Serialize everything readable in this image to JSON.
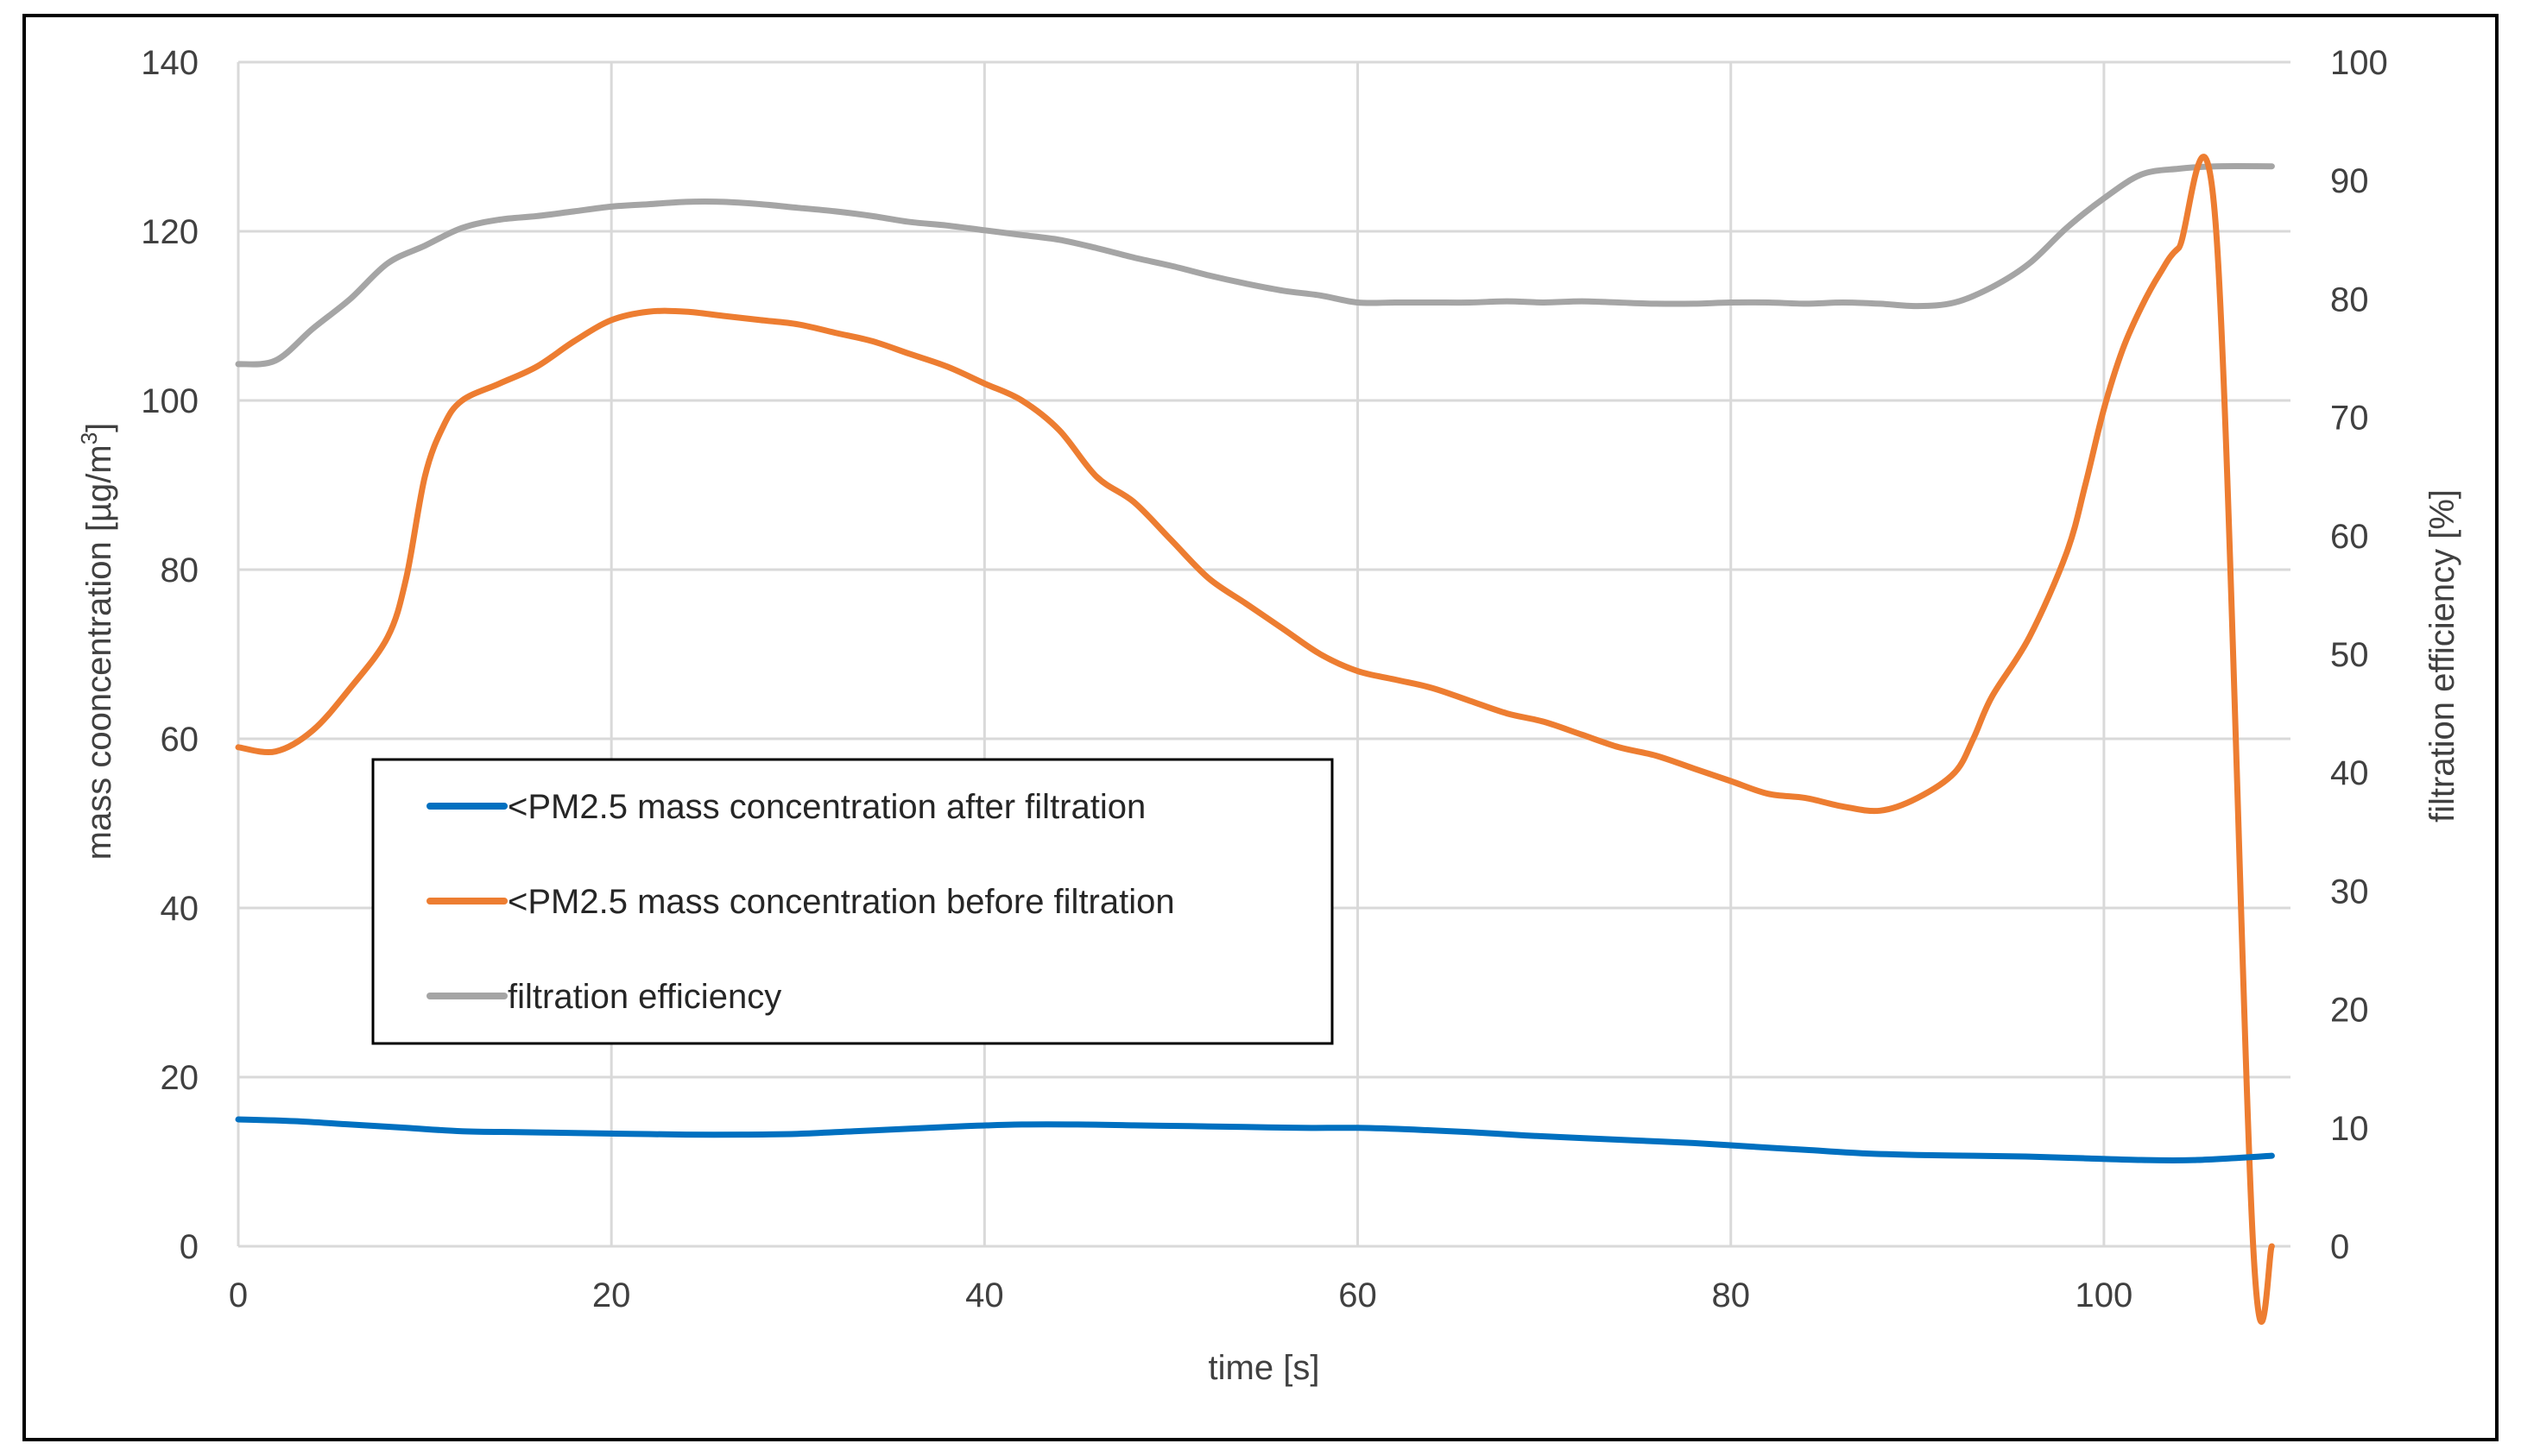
{
  "chart_data": {
    "type": "line",
    "title": "",
    "xlabel": "time [s]",
    "ylabel": "mass cooncentration [µg/m",
    "ylabel_sup": "3",
    "ylabel_close": "]",
    "y2label": "filtration efficiency [%]",
    "xlim": [
      0,
      110
    ],
    "ylim": [
      0,
      140
    ],
    "y2lim": [
      0,
      100
    ],
    "xticks": [
      "0",
      "20",
      "40",
      "60",
      "80",
      "100"
    ],
    "yticks": [
      "0",
      "20",
      "40",
      "60",
      "80",
      "100",
      "120",
      "140"
    ],
    "y2ticks": [
      "0",
      "10",
      "20",
      "30",
      "40",
      "50",
      "60",
      "70",
      "80",
      "90",
      "100"
    ],
    "grid": true,
    "legend_position": "center-left",
    "series": [
      {
        "name": "<PM2.5 mass concentration after filtration",
        "axis": "left",
        "color": "#0070C0",
        "x": [
          0,
          3,
          6,
          9,
          12,
          15,
          18,
          21,
          24,
          27,
          30,
          33,
          36,
          39,
          42,
          45,
          48,
          51,
          54,
          57,
          60,
          63,
          66,
          69,
          72,
          75,
          78,
          81,
          84,
          87,
          90,
          93,
          96,
          99,
          102,
          105,
          109
        ],
        "y": [
          15,
          14.8,
          14.4,
          14,
          13.6,
          13.5,
          13.4,
          13.3,
          13.2,
          13.2,
          13.3,
          13.6,
          13.9,
          14.2,
          14.4,
          14.4,
          14.3,
          14.2,
          14.1,
          14,
          14,
          13.8,
          13.5,
          13.1,
          12.8,
          12.5,
          12.2,
          11.8,
          11.4,
          11,
          10.8,
          10.7,
          10.6,
          10.4,
          10.2,
          10.2,
          10.7
        ]
      },
      {
        "name": "<PM2.5 mass concentration before filtration",
        "axis": "left",
        "color": "#ED7D31",
        "x": [
          0,
          2,
          4,
          6,
          8,
          9,
          10,
          11,
          12,
          14,
          16,
          18,
          20,
          22,
          24,
          26,
          28,
          30,
          32,
          34,
          36,
          38,
          40,
          42,
          44,
          46,
          48,
          50,
          52,
          54,
          56,
          58,
          60,
          62,
          64,
          66,
          68,
          70,
          72,
          74,
          76,
          78,
          80,
          82,
          84,
          86,
          88,
          90,
          92,
          93,
          94,
          96,
          98,
          99,
          100,
          101,
          102,
          103,
          104,
          106,
          108,
          109
        ],
        "y": [
          59,
          58.5,
          61,
          66,
          72,
          79,
          91,
          97,
          100,
          102,
          104,
          107,
          109.5,
          110.5,
          110.5,
          110,
          109.5,
          109,
          108,
          107,
          105.5,
          104,
          102,
          100,
          96.5,
          91,
          88,
          83.5,
          79,
          76,
          73,
          70,
          68,
          67,
          66,
          64.5,
          63,
          62,
          60.5,
          59,
          58,
          56.5,
          55,
          53.5,
          53,
          52,
          51.5,
          53,
          56,
          60,
          65,
          72,
          82,
          90,
          99,
          106,
          111,
          115,
          118,
          120.5,
          0,
          0
        ],
        "note": ""
      },
      {
        "name": "filtration efficiency",
        "axis": "right",
        "color": "#A5A5A5",
        "x": [
          0,
          2,
          4,
          6,
          8,
          10,
          12,
          14,
          16,
          18,
          20,
          22,
          24,
          26,
          28,
          30,
          32,
          34,
          36,
          38,
          40,
          42,
          44,
          46,
          48,
          50,
          52,
          54,
          56,
          58,
          60,
          62,
          64,
          66,
          68,
          70,
          72,
          74,
          76,
          78,
          80,
          82,
          84,
          86,
          88,
          90,
          92,
          94,
          96,
          98,
          100,
          102,
          104,
          106,
          109
        ],
        "y": [
          74.5,
          74.8,
          77.5,
          80,
          83,
          84.5,
          86,
          86.7,
          87,
          87.4,
          87.8,
          88,
          88.2,
          88.2,
          88,
          87.7,
          87.4,
          87,
          86.5,
          86.2,
          85.8,
          85.4,
          85,
          84.3,
          83.5,
          82.8,
          82,
          81.3,
          80.7,
          80.3,
          79.7,
          79.7,
          79.7,
          79.7,
          79.8,
          79.7,
          79.8,
          79.7,
          79.6,
          79.6,
          79.7,
          79.7,
          79.6,
          79.7,
          79.6,
          79.4,
          79.7,
          81,
          83,
          86,
          88.5,
          90.5,
          91,
          91.2,
          91.2
        ]
      }
    ]
  }
}
